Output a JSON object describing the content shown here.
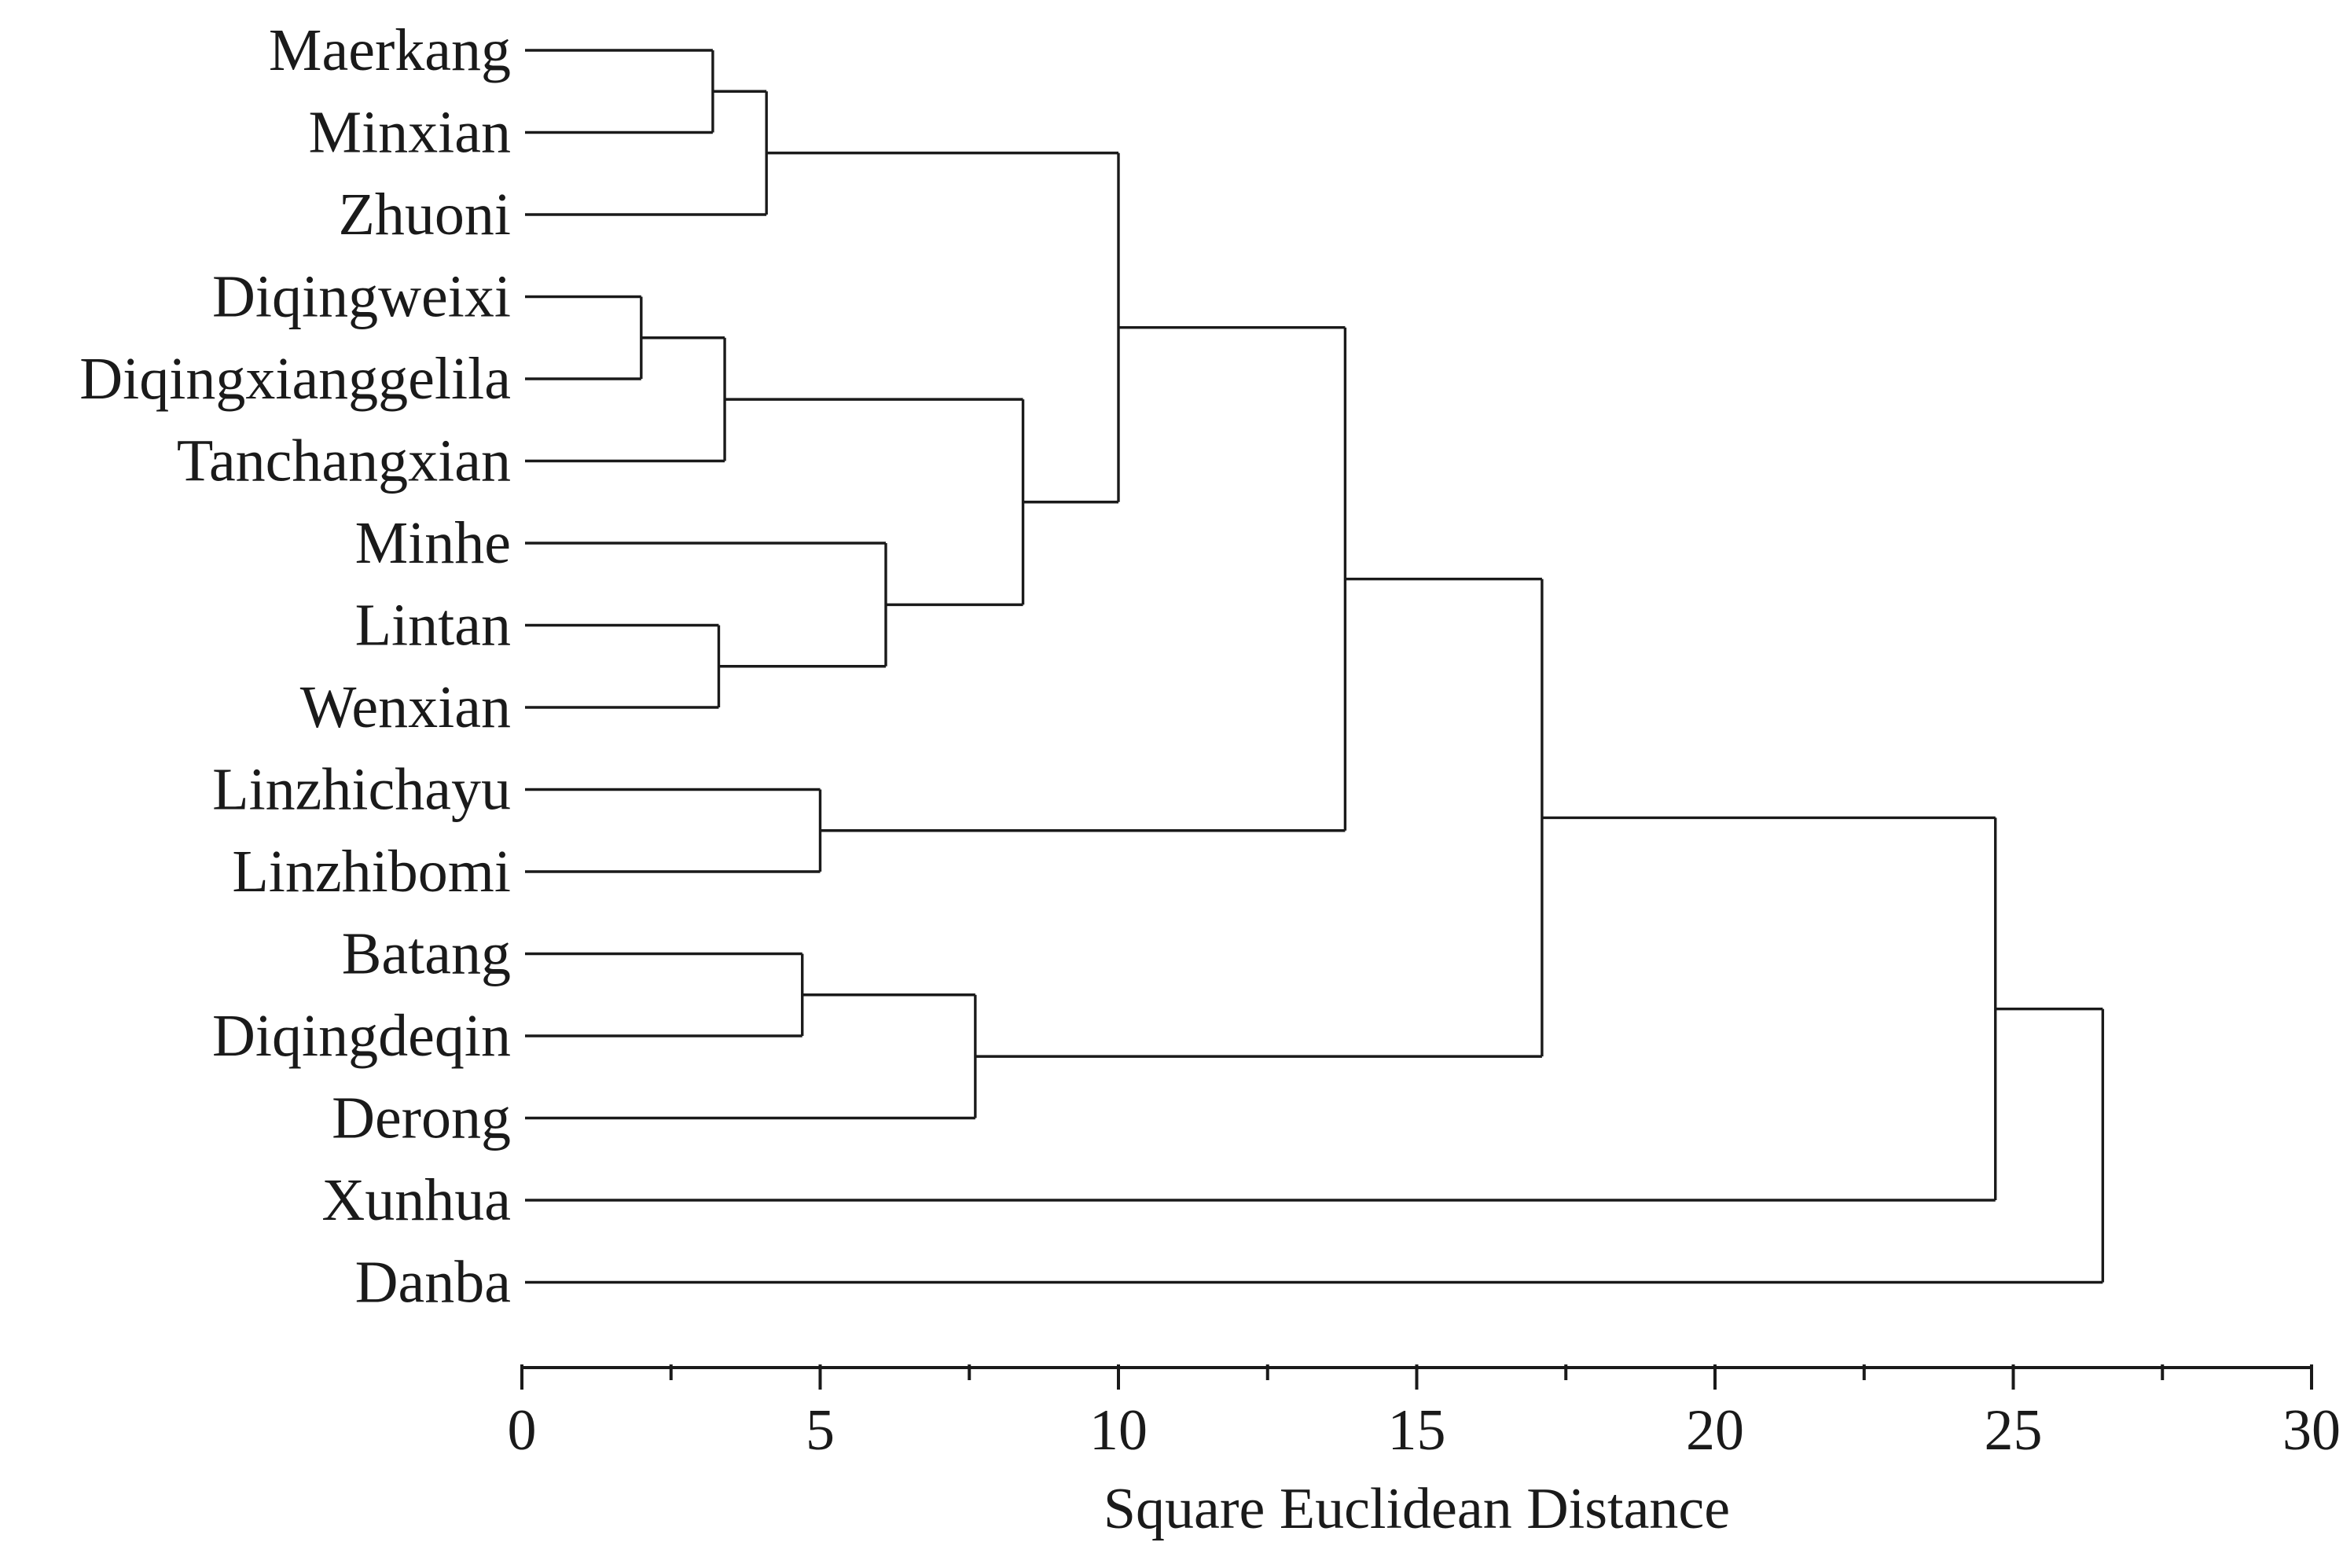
{
  "chart_data": {
    "type": "dendrogram",
    "orientation": "horizontal",
    "leaves": [
      "Maerkang",
      "Minxian",
      "Zhuoni",
      "Diqingweixi",
      "Diqingxianggelila",
      "Tanchangxian",
      "Minhe",
      "Lintan",
      "Wenxian",
      "Linzhichayu",
      "Linzhibomi",
      "Batang",
      "Diqingdeqin",
      "Derong",
      "Xunhua",
      "Danba"
    ],
    "merges": [
      {
        "a": "L0",
        "b": "L1",
        "height": 3.2
      },
      {
        "a": "M0",
        "b": "L2",
        "height": 4.1
      },
      {
        "a": "L3",
        "b": "L4",
        "height": 2.0
      },
      {
        "a": "M2",
        "b": "L5",
        "height": 3.4
      },
      {
        "a": "L7",
        "b": "L8",
        "height": 3.3
      },
      {
        "a": "L6",
        "b": "M4",
        "height": 6.1
      },
      {
        "a": "M3",
        "b": "M5",
        "height": 8.4
      },
      {
        "a": "M1",
        "b": "M6",
        "height": 10.0
      },
      {
        "a": "L9",
        "b": "L10",
        "height": 5.0
      },
      {
        "a": "M7",
        "b": "M8",
        "height": 13.8
      },
      {
        "a": "L11",
        "b": "L12",
        "height": 4.7
      },
      {
        "a": "M10",
        "b": "L13",
        "height": 7.6
      },
      {
        "a": "M9",
        "b": "M11",
        "height": 17.1
      },
      {
        "a": "M12",
        "b": "L14",
        "height": 24.7
      },
      {
        "a": "M13",
        "b": "L15",
        "height": 26.5
      }
    ],
    "xlim": [
      0,
      30
    ],
    "xticks": [
      0,
      5,
      10,
      15,
      20,
      25,
      30
    ],
    "minor_ticks": [
      2.5,
      7.5,
      12.5,
      17.5,
      22.5,
      27.5
    ],
    "xlabel": "Square Euclidean Distance",
    "title": "",
    "grid": false,
    "line_color": "#1a1a1a"
  }
}
